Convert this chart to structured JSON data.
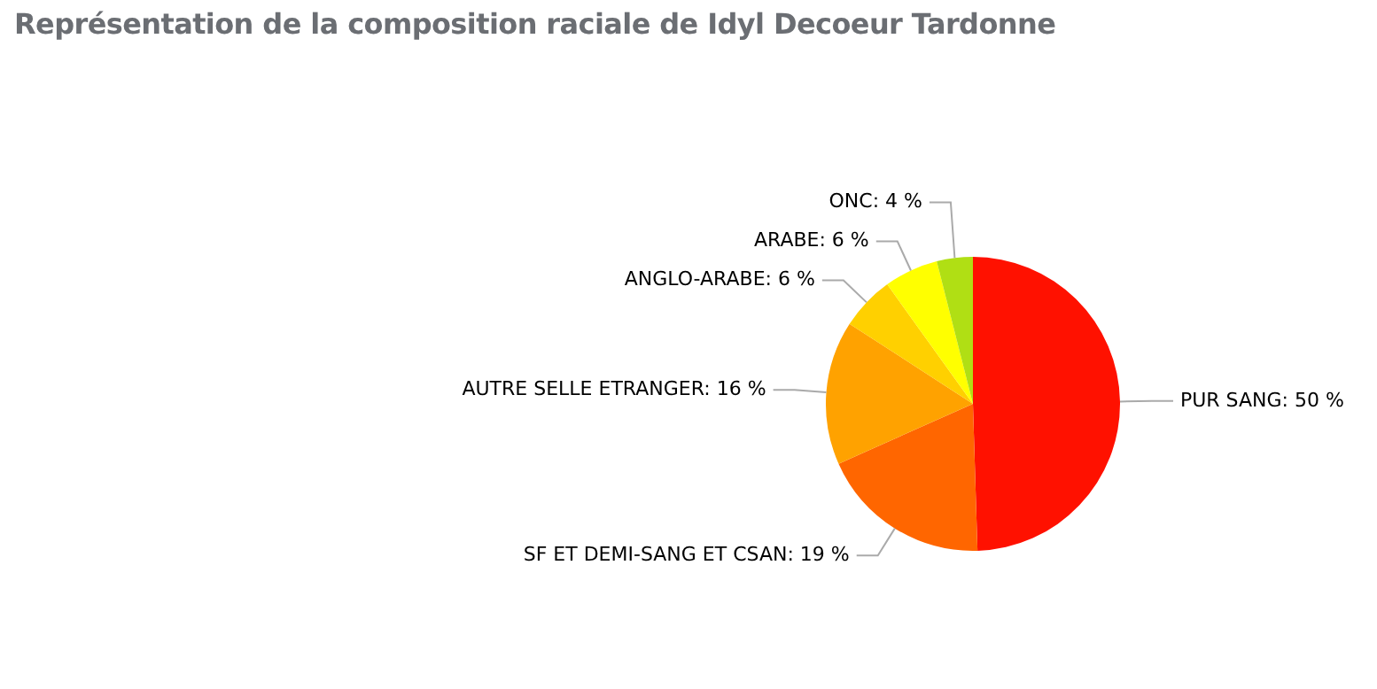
{
  "chart_data": {
    "type": "pie",
    "title": "Représentation de la composition raciale de Idyl Decoeur Tardonne",
    "categories": [
      "PUR SANG",
      "SF ET DEMI-SANG ET CSAN",
      "AUTRE SELLE ETRANGER",
      "ANGLO-ARABE",
      "ARABE",
      "ONC"
    ],
    "values": [
      50,
      19,
      16,
      6,
      6,
      4
    ],
    "value_labels": [
      "50 %",
      "19 %",
      "16 %",
      "6 %",
      "6 %",
      "4 %"
    ],
    "colors": [
      "#ff1100",
      "#ff6600",
      "#ffa200",
      "#ffd000",
      "#ffff00",
      "#b0df14"
    ],
    "legend": false
  }
}
